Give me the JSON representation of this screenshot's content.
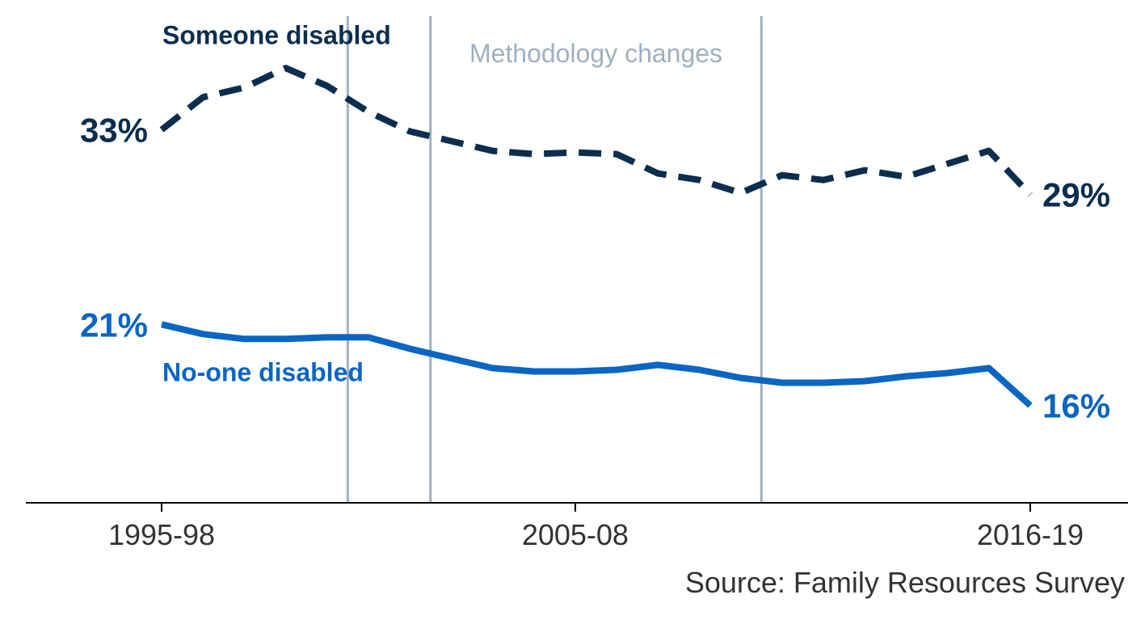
{
  "chart_data": {
    "type": "line",
    "title": "",
    "xlabel": "",
    "ylabel": "",
    "x": [
      "1995-98",
      "1996-99",
      "1997-00",
      "1998-01",
      "1999-02",
      "2000-03",
      "2001-04",
      "2002-05",
      "2003-06",
      "2004-07",
      "2005-08",
      "2006-09",
      "2007-10",
      "2008-11",
      "2009-12",
      "2010-13",
      "2011-14",
      "2012-15",
      "2013-16",
      "2014-17",
      "2015-18",
      "2016-19"
    ],
    "x_tick_labels": [
      "1995-98",
      "2005-08",
      "2016-19"
    ],
    "series": [
      {
        "name": "Someone disabled",
        "style": "dashed",
        "color": "#0b2e4f",
        "values": [
          33,
          35,
          35.6,
          36.8,
          35.7,
          34.1,
          32.9,
          32.3,
          31.7,
          31.5,
          31.6,
          31.5,
          30.3,
          29.9,
          29.1,
          30.2,
          29.9,
          30.5,
          30.1,
          30.9,
          31.7,
          29
        ],
        "end_labels": {
          "start": "33%",
          "end": "29%"
        }
      },
      {
        "name": "No-one disabled",
        "style": "solid",
        "color": "#0a66c2",
        "values": [
          21,
          20.4,
          20.1,
          20.1,
          20.2,
          20.2,
          19.5,
          18.9,
          18.3,
          18.1,
          18.1,
          18.2,
          18.5,
          18.2,
          17.7,
          17.4,
          17.4,
          17.5,
          17.8,
          18.0,
          18.3,
          16
        ],
        "end_labels": {
          "start": "21%",
          "end": "16%"
        }
      }
    ],
    "ylim": [
      10,
      40
    ],
    "grid": false,
    "legend": "direct labels",
    "reference_lines": {
      "x_positions": [
        4.5,
        6.5,
        14.5
      ],
      "label": "Methodology changes",
      "color": "#9fb0c0"
    },
    "source": "Source: Family Resources Survey"
  }
}
